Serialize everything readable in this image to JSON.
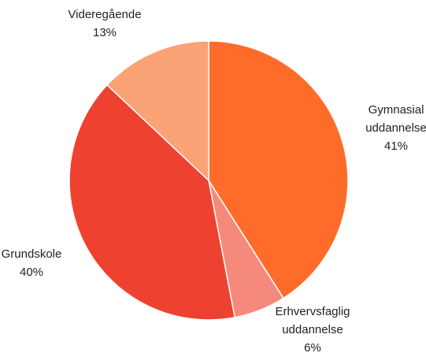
{
  "chart_data": {
    "type": "pie",
    "categories": [
      "Gymnasial uddannelse",
      "Erhvervsfaglig uddannelse",
      "Grundskole",
      "Videregående"
    ],
    "values": [
      41,
      6,
      40,
      13
    ],
    "value_labels": [
      "41%",
      "6%",
      "40%",
      "13%"
    ],
    "colors": [
      "#ff6c2a",
      "#f5897c",
      "#ef4130",
      "#fca277"
    ]
  }
}
